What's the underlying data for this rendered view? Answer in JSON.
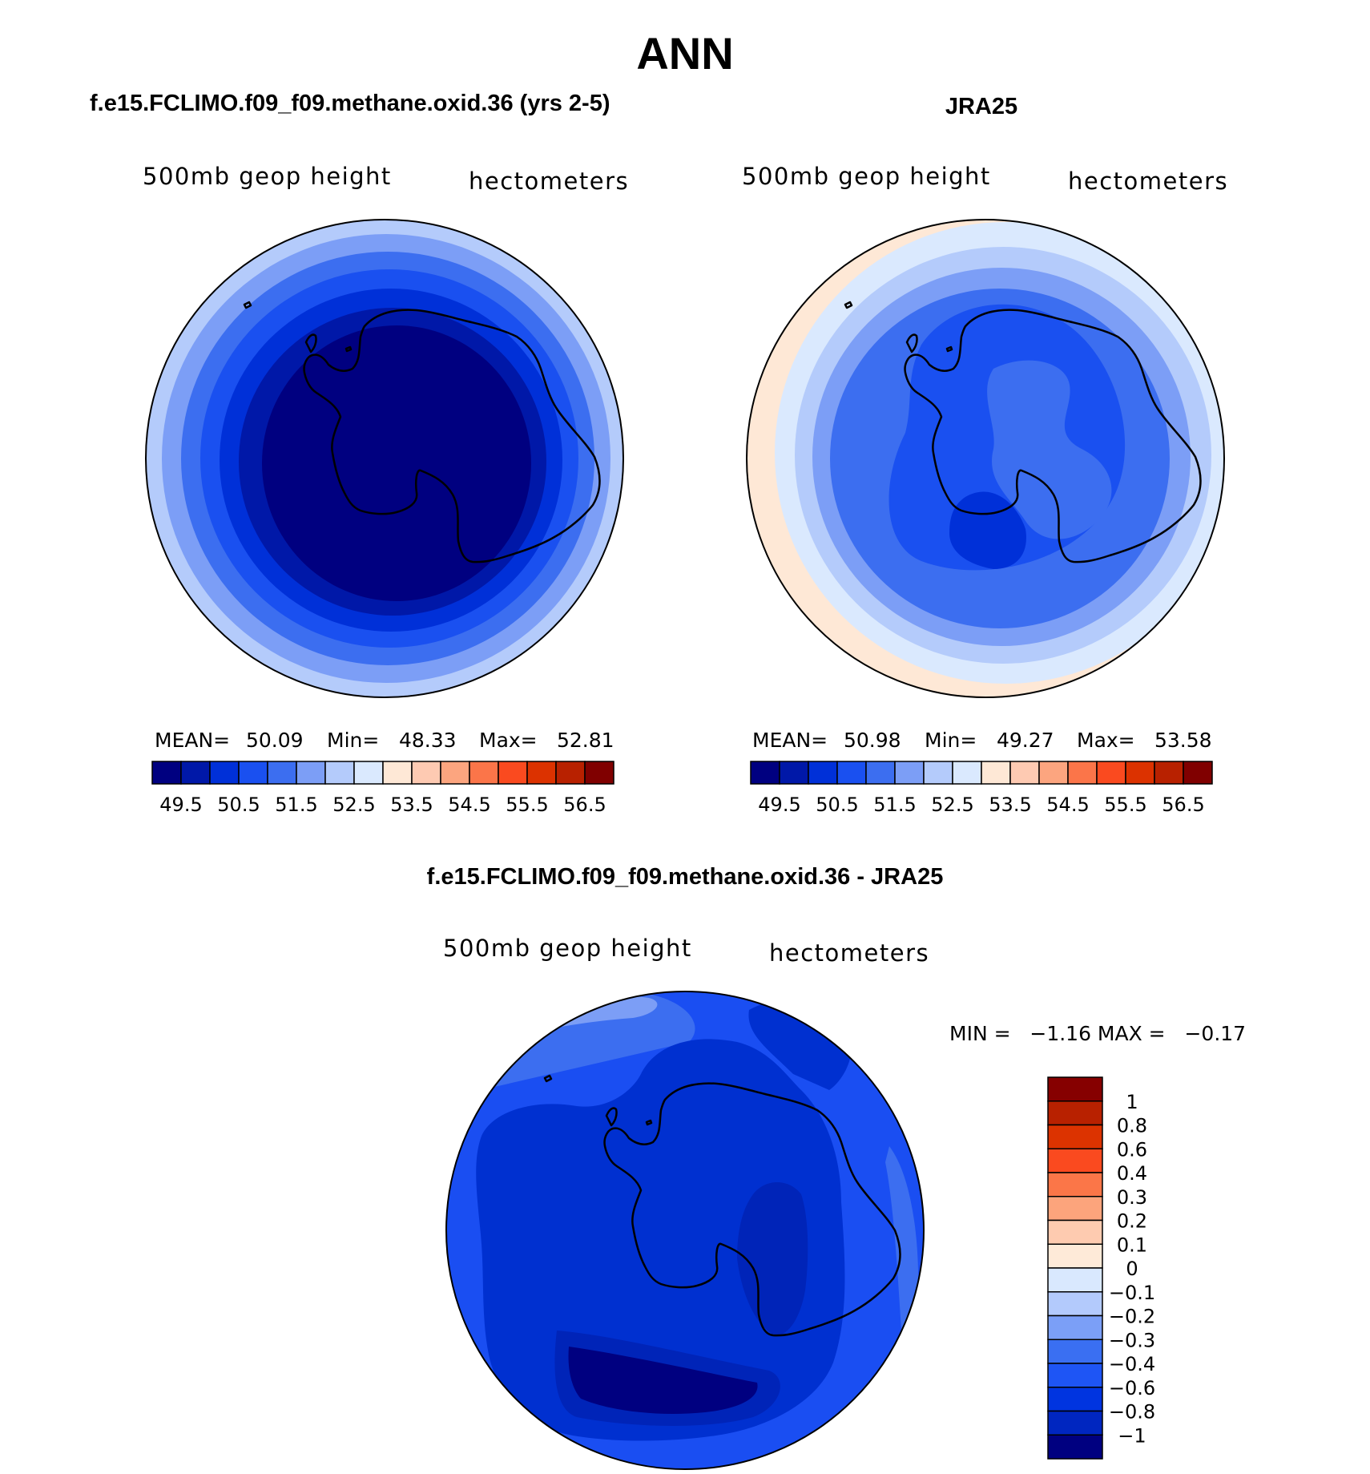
{
  "page_title": "ANN",
  "colors": {
    "seq15": [
      "#000080",
      "#0018a8",
      "#0030d8",
      "#1a50f0",
      "#3c6ef0",
      "#7c9ef6",
      "#b4cbfb",
      "#dae9fe",
      "#fee8d6",
      "#fecab2",
      "#fca57f",
      "#fb7549",
      "#fa4a1f",
      "#dc3200",
      "#b82100",
      "#800000"
    ],
    "diff14": [
      "#000080",
      "#0026c0",
      "#0034e0",
      "#1e55f5",
      "#3a6ff2",
      "#7b9ff7",
      "#b3cafc",
      "#d9e8fe",
      "#feead8",
      "#fecbb0",
      "#fca47c",
      "#fb7648",
      "#fa4a1f",
      "#dc3300",
      "#b82100",
      "#860000"
    ],
    "outline": "#000000"
  },
  "panels": {
    "model": {
      "title": "f.e15.FCLIMO.f09_f09.methane.oxid.36 (yrs 2-5)",
      "var_label": "500mb geop height",
      "units": "hectometers",
      "mean_label": "MEAN=",
      "mean": "50.09",
      "min_label": "Min=",
      "min": "48.33",
      "max_label": "Max=",
      "max": "52.81"
    },
    "obs": {
      "title": "JRA25",
      "var_label": "500mb geop height",
      "units": "hectometers",
      "mean_label": "MEAN=",
      "mean": "50.98",
      "min_label": "Min=",
      "min": "49.27",
      "max_label": "Max=",
      "max": "53.58"
    },
    "diff": {
      "title": "f.e15.FCLIMO.f09_f09.methane.oxid.36 - JRA25",
      "var_label": "500mb geop height",
      "units": "hectometers",
      "minmax_text": "MIN =   −1.16 MAX =   −0.17"
    }
  },
  "chart_data": [
    {
      "type": "heatmap",
      "projection": "south-polar-stereographic",
      "title": "f.e15.FCLIMO.f09_f09.methane.oxid.36 (yrs 2-5)",
      "variable": "500mb geop height",
      "units": "hectometers",
      "stats": {
        "mean": 50.09,
        "min": 48.33,
        "max": 52.81
      },
      "contour_levels": [
        49.5,
        50,
        50.5,
        51,
        51.5,
        52,
        52.5,
        53,
        53.5,
        54,
        54.5,
        55,
        55.5,
        56,
        56.5
      ],
      "colorbar_tick_labels": [
        "49.5",
        "50.5",
        "51.5",
        "52.5",
        "53.5",
        "54.5",
        "55.5",
        "56.5"
      ],
      "colorbar_orientation": "horizontal",
      "band_indices": [
        6,
        5,
        4,
        3,
        2,
        1,
        0
      ]
    },
    {
      "type": "heatmap",
      "projection": "south-polar-stereographic",
      "title": "JRA25",
      "variable": "500mb geop height",
      "units": "hectometers",
      "stats": {
        "mean": 50.98,
        "min": 49.27,
        "max": 53.58
      },
      "contour_levels": [
        49.5,
        50,
        50.5,
        51,
        51.5,
        52,
        52.5,
        53,
        53.5,
        54,
        54.5,
        55,
        55.5,
        56,
        56.5
      ],
      "colorbar_tick_labels": [
        "49.5",
        "50.5",
        "51.5",
        "52.5",
        "53.5",
        "54.5",
        "55.5",
        "56.5"
      ],
      "colorbar_orientation": "horizontal",
      "band_indices": [
        8,
        7,
        6,
        5,
        4,
        3,
        2
      ]
    },
    {
      "type": "heatmap",
      "projection": "south-polar-stereographic",
      "title": "f.e15.FCLIMO.f09_f09.methane.oxid.36 - JRA25",
      "variable": "500mb geop height",
      "units": "hectometers",
      "stats": {
        "min": -1.16,
        "max": -0.17
      },
      "contour_levels": [
        -1,
        -0.8,
        -0.6,
        -0.4,
        -0.3,
        -0.2,
        -0.1,
        0,
        0.1,
        0.2,
        0.3,
        0.4,
        0.6,
        0.8,
        1
      ],
      "colorbar_tick_labels": [
        "1",
        "0.8",
        "0.6",
        "0.4",
        "0.3",
        "0.2",
        "0.1",
        "0",
        "−0.1",
        "−0.2",
        "−0.3",
        "−0.4",
        "−0.6",
        "−0.8",
        "−1"
      ],
      "colorbar_orientation": "vertical"
    }
  ]
}
